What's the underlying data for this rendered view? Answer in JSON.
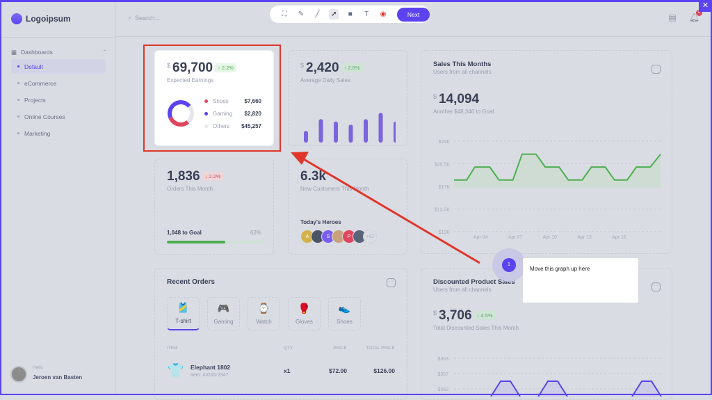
{
  "app": {
    "logo": "Logoipsum",
    "search_placeholder": "Search...",
    "notification_count": "8"
  },
  "toolbar": {
    "tools": [
      "select-region",
      "pen",
      "line",
      "arrow",
      "rectangle",
      "text",
      "record"
    ],
    "next": "Next"
  },
  "sidebar": {
    "section": "Dashboards",
    "items": [
      {
        "label": "Default",
        "active": true
      },
      {
        "label": "eCommerce"
      },
      {
        "label": "Projects"
      },
      {
        "label": "Online Courses"
      },
      {
        "label": "Marketing"
      }
    ],
    "user": {
      "greeting": "Hello",
      "name": "Jeroen van Basten"
    }
  },
  "earnings": {
    "currency": "$",
    "value": "69,700",
    "change": "↑ 2.2%",
    "label": "Expected Earnings",
    "items": [
      {
        "name": "Shoes",
        "value": "$7,660",
        "color": "#e0455f",
        "share": 0.3
      },
      {
        "name": "Gaming",
        "value": "$2,820",
        "color": "#5b43f0",
        "share": 0.45
      },
      {
        "name": "Others",
        "value": "$45,257",
        "color": "#e6e7ee",
        "share": 0.25
      }
    ]
  },
  "daily": {
    "currency": "$",
    "value": "2,420",
    "change": "↑ 2.6%",
    "label": "Average Daily Sales",
    "bars": [
      15,
      30,
      27,
      23,
      30,
      38,
      27
    ]
  },
  "orders": {
    "value": "1,836",
    "change": "↓ 2.2%",
    "label": "Orders This Month",
    "goal": "1,048 to Goal",
    "percent_label": "62%",
    "progress": 62
  },
  "customers": {
    "value": "6.3k",
    "label": "New Customers This Month",
    "heroes_title": "Today's Heroes",
    "heroes": [
      {
        "initial": "A",
        "color": "#d4b24a"
      },
      {
        "initial": "",
        "color": "#4a5568"
      },
      {
        "initial": "S",
        "color": "#7b5cf0"
      },
      {
        "initial": "",
        "color": "#c9a27a"
      },
      {
        "initial": "P",
        "color": "#e0455f"
      },
      {
        "initial": "",
        "color": "#5a6478"
      }
    ],
    "more": "+42"
  },
  "sales": {
    "title": "Sales This Months",
    "subtitle": "Users from all channels",
    "currency": "$",
    "value": "14,094",
    "goal": "Another $48,346 to Goal",
    "chart_data": {
      "type": "area",
      "yticks": [
        "$24K",
        "$20.5K",
        "$17K",
        "$13.5K",
        "$10K"
      ],
      "ylim": [
        10,
        24
      ],
      "xticks": [
        "Apr 04",
        "Apr 07",
        "Apr 10",
        "Apr 13",
        "Apr 16"
      ],
      "grid": true,
      "color": "#4caf50",
      "points": [
        [
          1.7,
          18
        ],
        [
          2.8,
          18
        ],
        [
          3.5,
          20
        ],
        [
          4.8,
          20
        ],
        [
          5.6,
          18
        ],
        [
          6.8,
          18
        ],
        [
          7.6,
          22
        ],
        [
          8.8,
          22
        ],
        [
          9.6,
          20
        ],
        [
          10.8,
          20
        ],
        [
          11.6,
          18
        ],
        [
          12.8,
          18
        ],
        [
          13.6,
          20
        ],
        [
          14.8,
          20
        ],
        [
          15.6,
          18
        ],
        [
          16.7,
          18
        ],
        [
          17.5,
          20
        ],
        [
          18.7,
          20
        ],
        [
          19.6,
          22
        ]
      ]
    }
  },
  "recent": {
    "title": "Recent Orders",
    "tabs": [
      {
        "label": "T-shirt",
        "icon": "tshirt-icon",
        "glyph": "🎽"
      },
      {
        "label": "Gaming",
        "icon": "gamepad-icon",
        "glyph": "🎮"
      },
      {
        "label": "Watch",
        "icon": "watch-icon",
        "glyph": "⌚"
      },
      {
        "label": "Gloves",
        "icon": "gloves-icon",
        "glyph": "🥊"
      },
      {
        "label": "Shoes",
        "icon": "shoe-icon",
        "glyph": "👟"
      }
    ],
    "columns": [
      "ITEM",
      "QTY",
      "PRICE",
      "TOTAL PRICE"
    ],
    "rows": [
      {
        "name": "Elephant 1802",
        "sku": "Item: #XDG-2347",
        "qty": "x1",
        "price": "$72.00",
        "total": "$126.00"
      }
    ]
  },
  "discounted": {
    "title": "Discounted Product Sales",
    "subtitle": "Users from all channels",
    "currency": "$",
    "value": "3,706",
    "change": "↓ 4.5%",
    "label": "Total Discounted Sales This Month",
    "yticks": [
      "$363",
      "$357",
      "$352"
    ],
    "color": "#5b43f0"
  },
  "annotation": {
    "step": "1",
    "text": "Move this graph up here",
    "arrow_color": "#e0352b"
  }
}
